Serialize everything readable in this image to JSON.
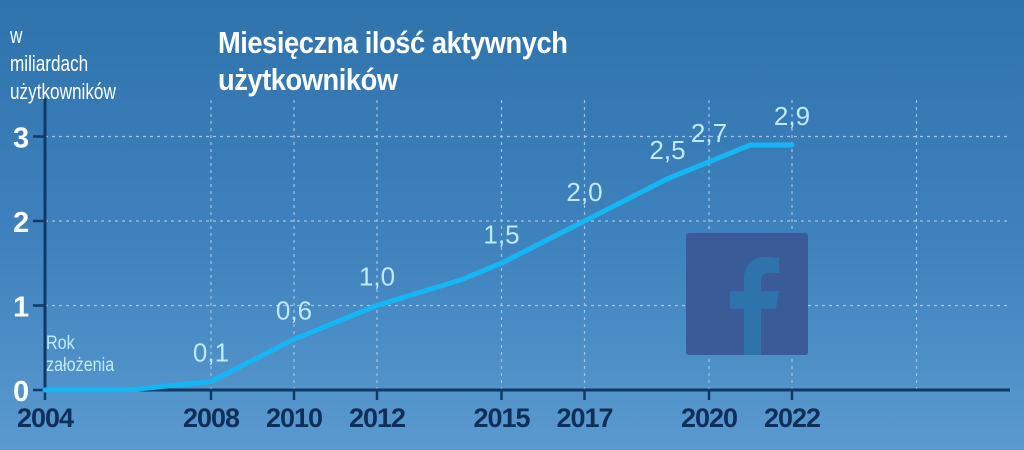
{
  "icons": {
    "logo": "facebook-f-logo"
  },
  "colors": {
    "line": "#16b6f5",
    "data_label": "#bfe9ff",
    "axis": "#0d3a66",
    "tick_label": "#0f2f59",
    "grid": "#9ec5e6",
    "logo_bg": "#3a5a98"
  },
  "chart_data": {
    "type": "line",
    "title": "Miesięczna ilość aktywnych użytkowników",
    "ylabel": "w\nmiliardach\nużytkowników",
    "xlabel": "",
    "annotation": "Rok\nzałożenia",
    "ylim": [
      0,
      3.5
    ],
    "yticks": [
      0,
      1,
      2,
      3
    ],
    "xticks": [
      "2004",
      "2008",
      "2010",
      "2012",
      "2015",
      "2017",
      "2020",
      "2022"
    ],
    "grid": true,
    "series": [
      {
        "x": [
          2004,
          2006,
          2008,
          2010,
          2012,
          2014,
          2015,
          2017,
          2019,
          2020,
          2021,
          2022
        ],
        "values": [
          0,
          0,
          0.1,
          0.6,
          1.0,
          1.3,
          1.5,
          2.0,
          2.5,
          2.7,
          2.9,
          2.9
        ]
      }
    ],
    "data_labels": [
      {
        "x": 2008,
        "y": 0.1,
        "text": "0,1"
      },
      {
        "x": 2010,
        "y": 0.6,
        "text": "0,6"
      },
      {
        "x": 2012,
        "y": 1.0,
        "text": "1,0"
      },
      {
        "x": 2015,
        "y": 1.5,
        "text": "1,5"
      },
      {
        "x": 2017,
        "y": 2.0,
        "text": "2,0"
      },
      {
        "x": 2019,
        "y": 2.5,
        "text": "2,5"
      },
      {
        "x": 2020,
        "y": 2.7,
        "text": "2,7"
      },
      {
        "x": 2022,
        "y": 2.9,
        "text": "2,9"
      }
    ]
  }
}
